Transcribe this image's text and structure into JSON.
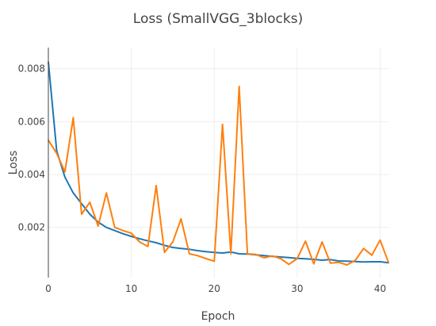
{
  "chart_data": {
    "type": "line",
    "title": "Loss (SmallVGG_3blocks)",
    "xlabel": "Epoch",
    "ylabel": "Loss",
    "xlim": [
      0,
      41
    ],
    "ylim": [
      0.0001,
      0.0088
    ],
    "x_ticks": [
      0,
      10,
      20,
      30,
      40
    ],
    "x_tick_labels": [
      "0",
      "10",
      "20",
      "30",
      "40"
    ],
    "y_ticks": [
      0.002,
      0.004,
      0.006,
      0.008
    ],
    "y_tick_labels": [
      "0.002",
      "0.004",
      "0.006",
      "0.008"
    ],
    "grid": true,
    "legend": "none",
    "x": [
      0,
      1,
      2,
      3,
      4,
      5,
      6,
      7,
      8,
      9,
      10,
      11,
      12,
      13,
      14,
      15,
      16,
      17,
      18,
      19,
      20,
      21,
      22,
      23,
      24,
      25,
      26,
      27,
      28,
      29,
      30,
      31,
      32,
      33,
      34,
      35,
      36,
      37,
      38,
      39,
      40,
      41
    ],
    "series": [
      {
        "color": "#1f77b4",
        "values": [
          0.00825,
          0.0049,
          0.0039,
          0.0033,
          0.0029,
          0.0025,
          0.0022,
          0.002,
          0.00188,
          0.00176,
          0.00166,
          0.00157,
          0.00149,
          0.00142,
          0.00132,
          0.00124,
          0.0012,
          0.00117,
          0.00112,
          0.00108,
          0.00105,
          0.00103,
          0.00107,
          0.001,
          0.00099,
          0.00096,
          0.00093,
          0.0009,
          0.00088,
          0.00086,
          0.00083,
          0.00081,
          0.00079,
          0.00076,
          0.00078,
          0.00073,
          0.00072,
          0.00071,
          0.00069,
          0.0007,
          0.0007,
          0.00066
        ]
      },
      {
        "color": "#ff7f0e",
        "values": [
          0.0053,
          0.0048,
          0.0041,
          0.00615,
          0.0025,
          0.00295,
          0.00205,
          0.0033,
          0.002,
          0.00188,
          0.00178,
          0.00145,
          0.00128,
          0.00358,
          0.00105,
          0.00145,
          0.00232,
          0.001,
          0.00093,
          0.00082,
          0.00072,
          0.0059,
          0.001,
          0.00733,
          0.001,
          0.00098,
          0.00085,
          0.00092,
          0.00082,
          0.0006,
          0.00082,
          0.00148,
          0.00062,
          0.00145,
          0.00065,
          0.00068,
          0.00058,
          0.00075,
          0.0012,
          0.00095,
          0.00152,
          0.00068
        ]
      }
    ]
  }
}
